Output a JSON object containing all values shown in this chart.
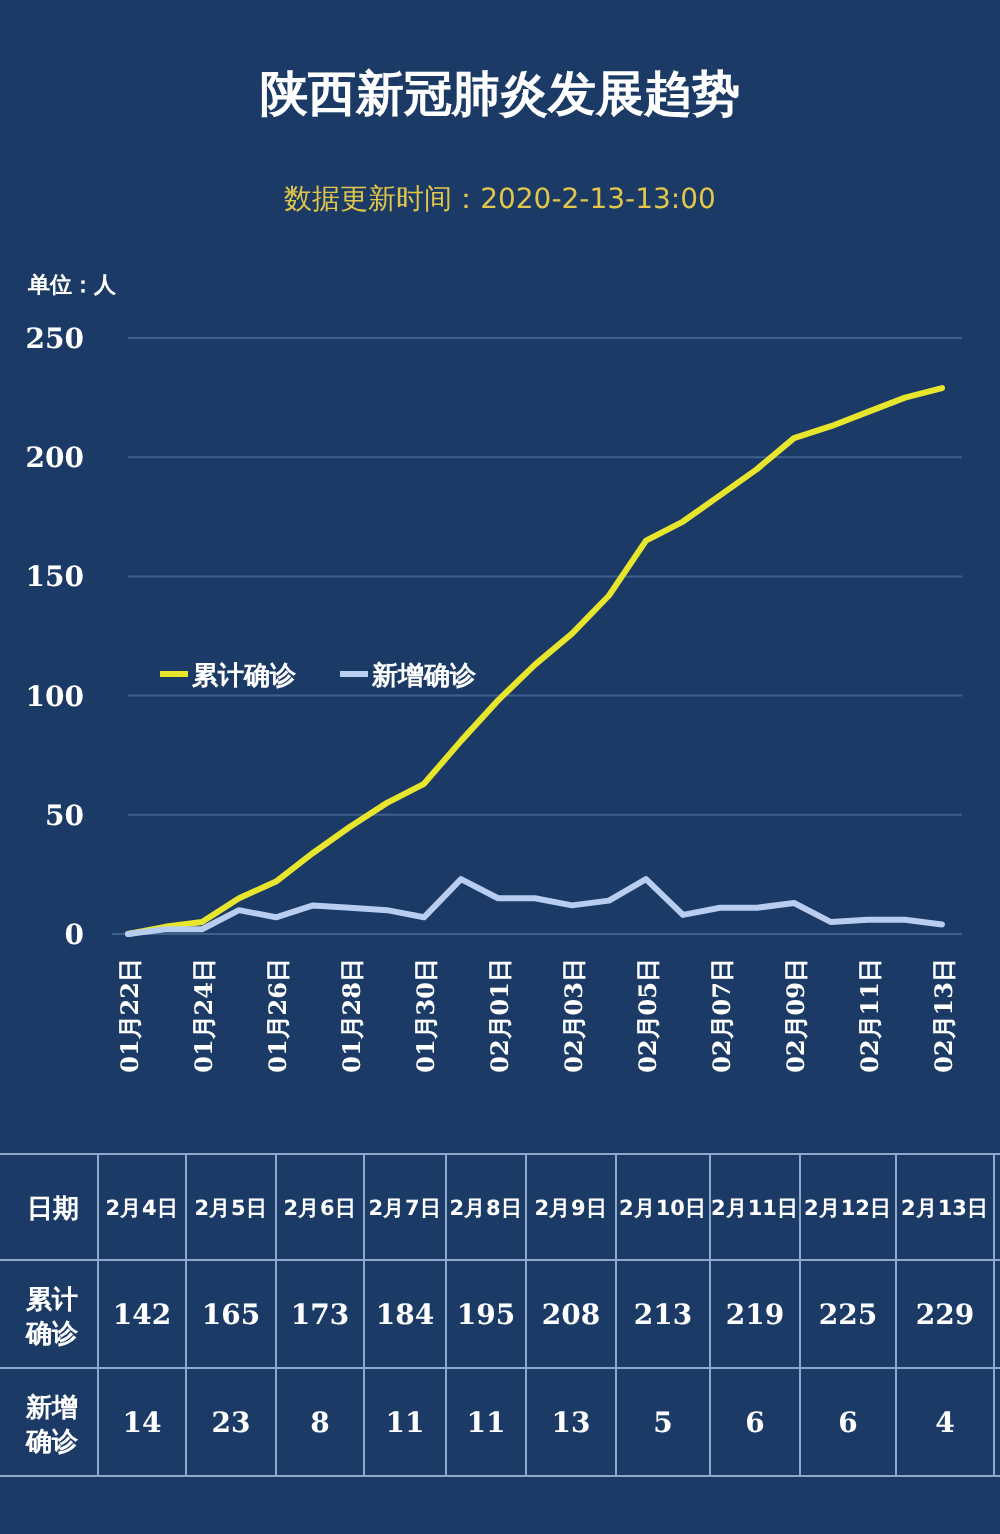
{
  "chart_data": [
    {
      "type": "line",
      "title": "陕西新冠肺炎发展趋势",
      "subtitle": "数据更新时间：2020-2-13-13:00",
      "ylabel": "单位：人",
      "categories": [
        "01月22日",
        null,
        "01月24日",
        null,
        "01月26日",
        null,
        "01月28日",
        null,
        "01月30日",
        null,
        "02月01日",
        null,
        "02月03日",
        null,
        "02月05日",
        null,
        "02月07日",
        null,
        "02月09日",
        null,
        "02月11日",
        null,
        "02月13日"
      ],
      "series": [
        {
          "name": "累计确诊",
          "color": "#e8e62c",
          "values": [
            0,
            3,
            5,
            15,
            22,
            34,
            45,
            55,
            63,
            81,
            98,
            113,
            126,
            142,
            165,
            173,
            184,
            195,
            208,
            213,
            219,
            225,
            229
          ]
        },
        {
          "name": "新增确诊",
          "color": "#b8cdef",
          "values": [
            0,
            2,
            2,
            10,
            7,
            12,
            11,
            10,
            7,
            23,
            15,
            15,
            12,
            14,
            23,
            8,
            11,
            11,
            13,
            5,
            6,
            6,
            4
          ]
        }
      ],
      "ylim": [
        0,
        250
      ],
      "yticks": [
        0,
        50,
        100,
        150,
        200,
        250
      ],
      "grid": "y",
      "legend": "left",
      "marker": "none",
      "line_style": "solid"
    },
    {
      "type": "other",
      "annotations": [
        "日期"
      ],
      "categories": [
        "2月4日",
        "2月5日",
        "2月6日",
        "2月7日",
        "2月8日",
        "2月9日",
        "2月10日",
        "2月11日",
        "2月12日",
        "2月13日"
      ],
      "series": [
        {
          "name": "累计确诊",
          "values": [
            142,
            165,
            173,
            184,
            195,
            208,
            213,
            219,
            225,
            229
          ]
        },
        {
          "name": "新增确诊",
          "values": [
            14,
            23,
            8,
            11,
            11,
            13,
            5,
            6,
            6,
            4
          ]
        }
      ],
      "data_labels": true
    }
  ]
}
